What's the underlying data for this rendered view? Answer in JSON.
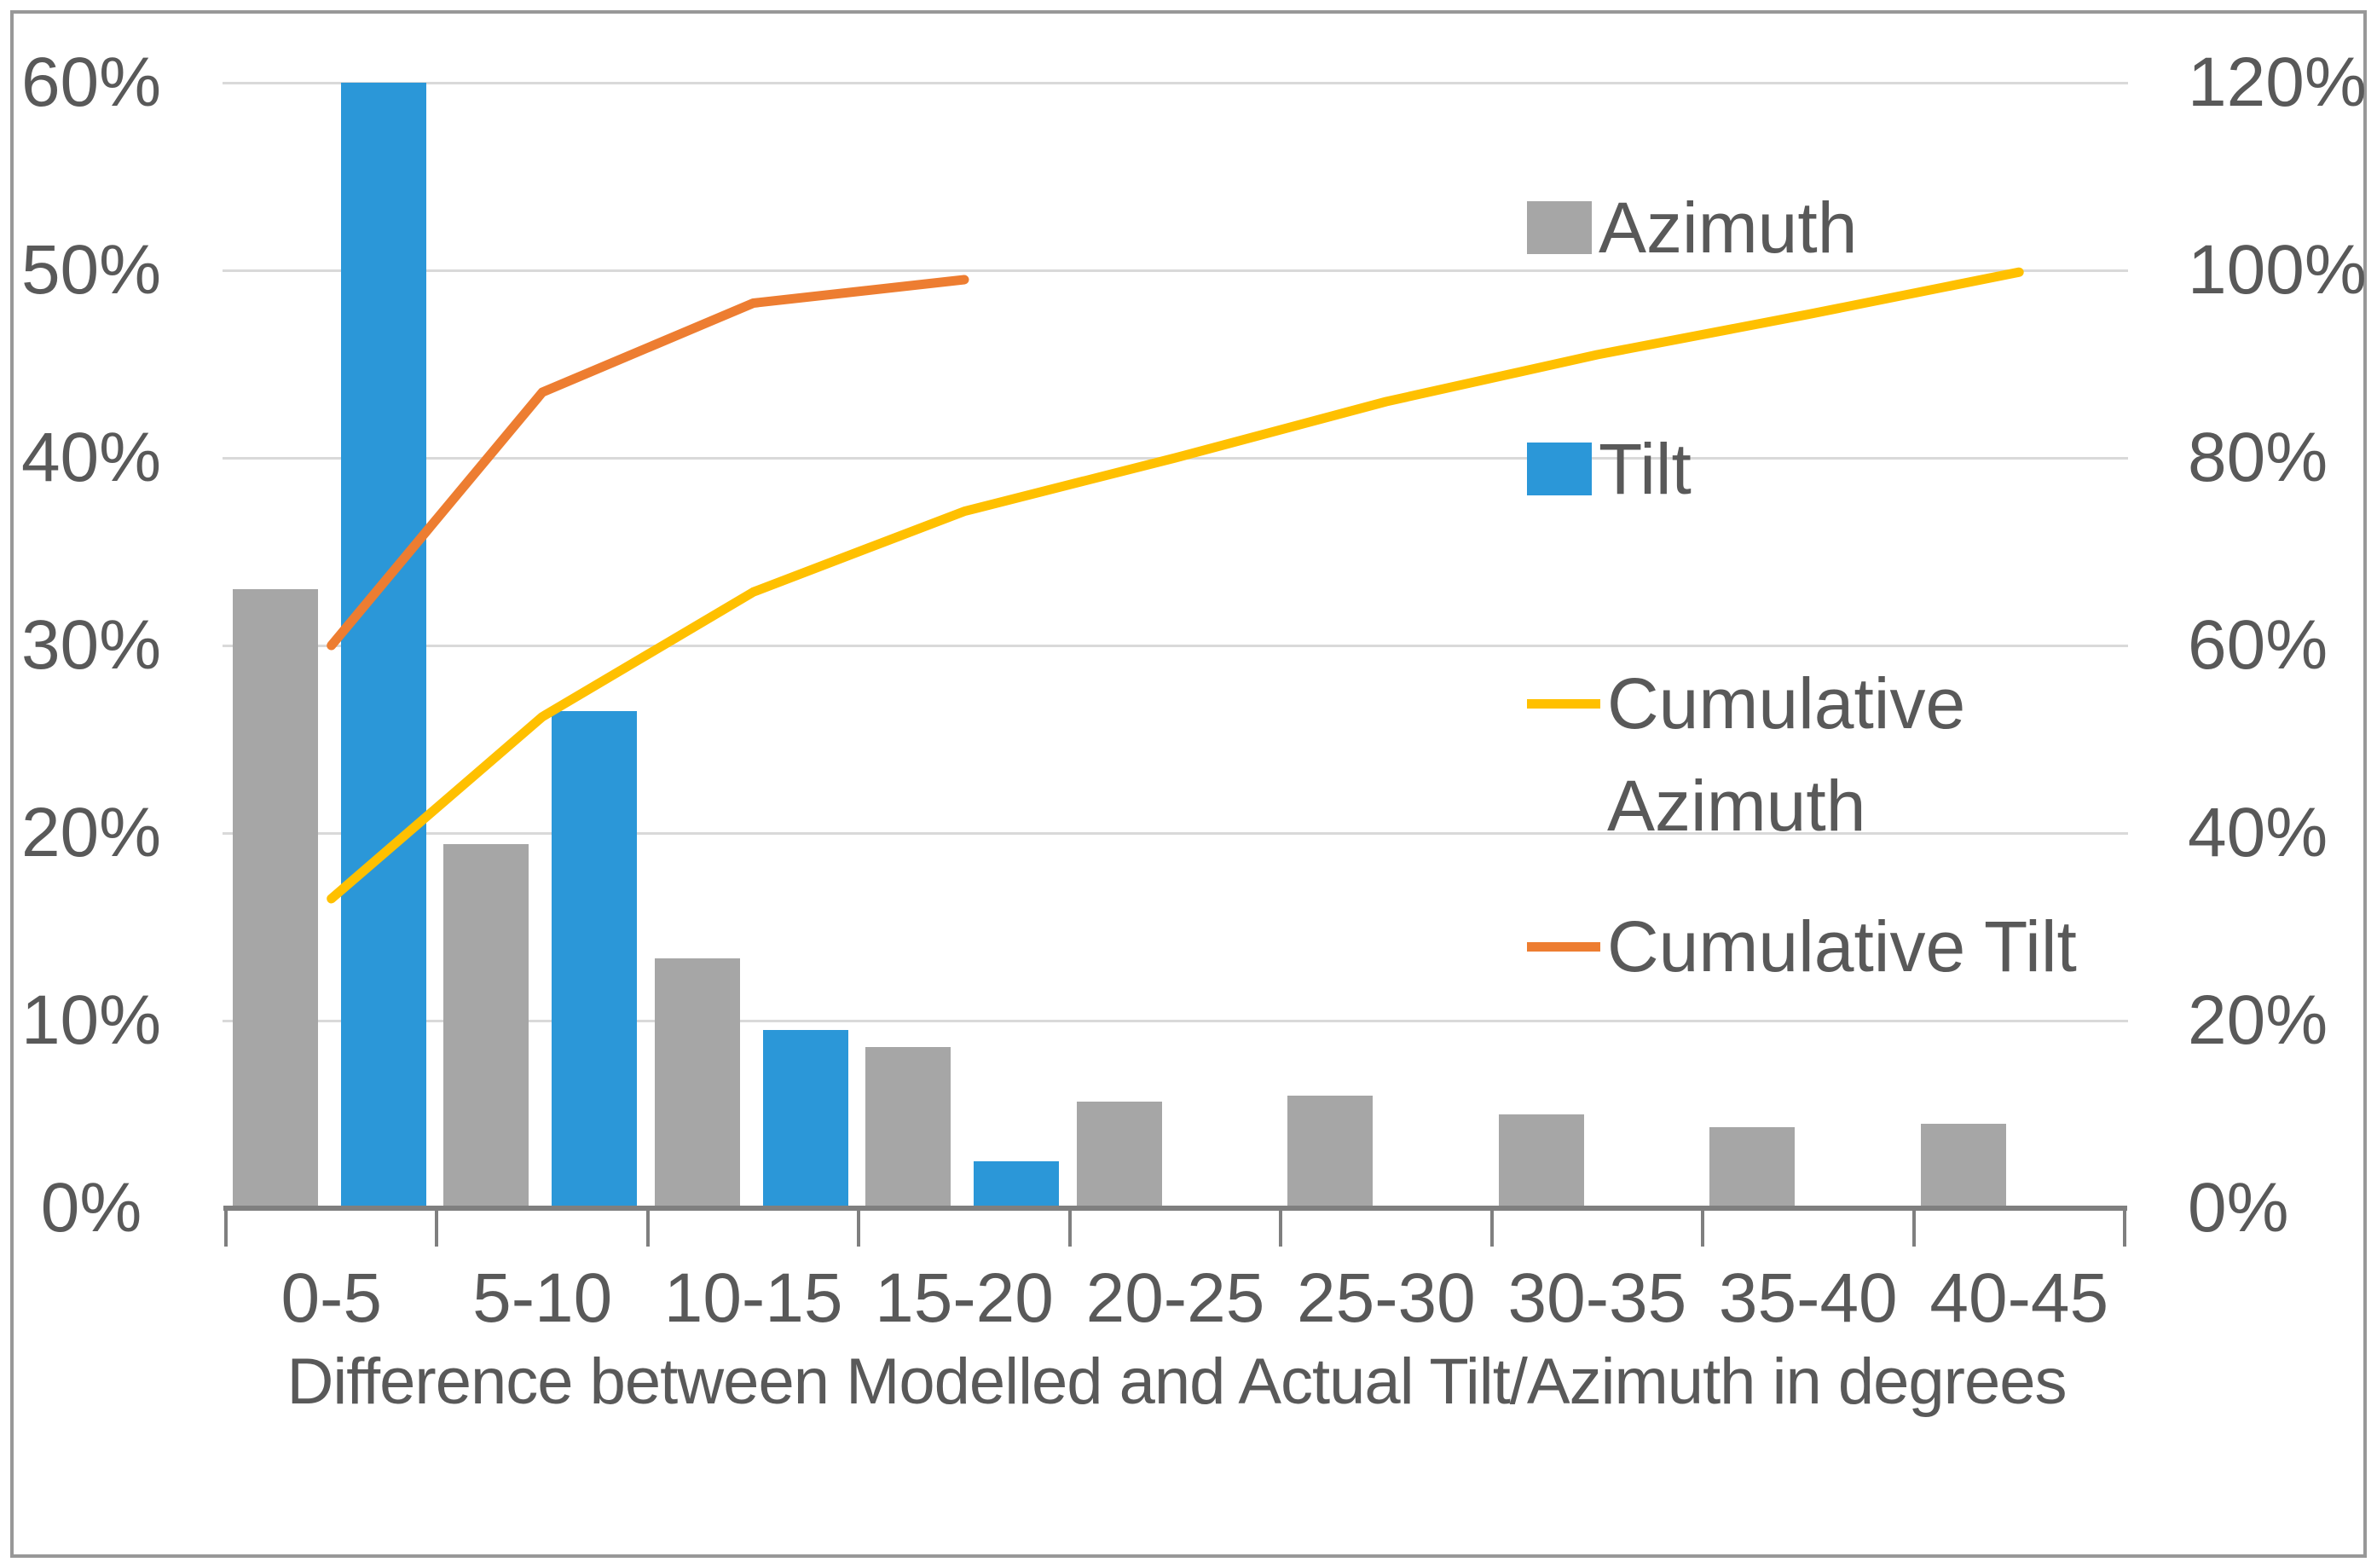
{
  "chart_data": {
    "type": "bar+line",
    "title": "",
    "xlabel": "Difference between Modelled and Actual Tilt/Azimuth in degrees",
    "categories": [
      "0-5",
      "5-10",
      "10-15",
      "15-20",
      "20-25",
      "25-30",
      "30-35",
      "35-40",
      "40-45"
    ],
    "series": [
      {
        "name": "Azimuth",
        "type": "bar",
        "axis": "left",
        "color": "#a6a6a6",
        "values": [
          33,
          19.4,
          13.3,
          8.6,
          5.7,
          6.0,
          5.0,
          4.3,
          4.5
        ]
      },
      {
        "name": "Tilt",
        "type": "bar",
        "axis": "left",
        "color": "#2b97d8",
        "values": [
          60,
          26.5,
          9.5,
          2.5,
          0,
          0,
          0,
          0,
          0
        ]
      },
      {
        "name": "Cumulative Azimuth",
        "type": "line",
        "axis": "right",
        "color": "#ffc000",
        "values": [
          33,
          52.4,
          65.7,
          74.3,
          80,
          86,
          91,
          95.3,
          99.8
        ]
      },
      {
        "name": "Cumulative Tilt",
        "type": "line",
        "axis": "right",
        "color": "#ed7d31",
        "values": [
          60,
          87,
          96.5,
          99
        ]
      }
    ],
    "left_axis": {
      "min": 0,
      "max": 60,
      "step": 10,
      "tick_labels": [
        "0%",
        "10%",
        "20%",
        "30%",
        "40%",
        "50%",
        "60%"
      ]
    },
    "right_axis": {
      "min": 0,
      "max": 120,
      "step": 20,
      "tick_labels": [
        "0%",
        "20%",
        "40%",
        "60%",
        "80%",
        "100%",
        "120%"
      ]
    },
    "grid": true,
    "legend_position": "right-overlay"
  },
  "colors": {
    "azimuth_bar": "#a6a6a6",
    "tilt_bar": "#2b97d8",
    "cumulative_azimuth_line": "#ffc000",
    "cumulative_tilt_line": "#ed7d31",
    "gridline": "#d9d9d9",
    "axis_line": "#7f7f7f",
    "text": "#595959"
  }
}
